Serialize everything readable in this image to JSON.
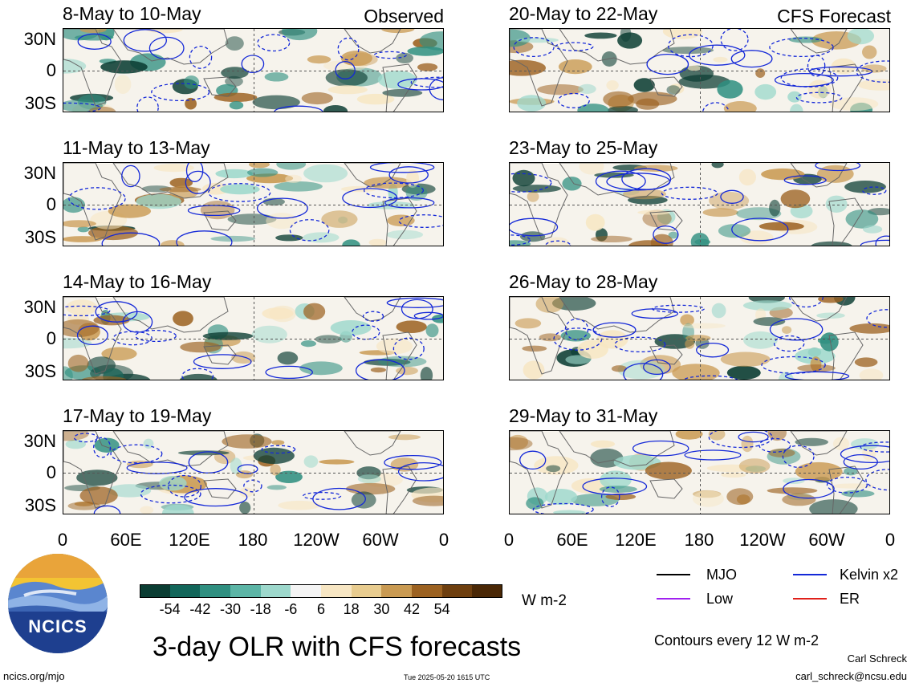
{
  "observed_label": "Observed",
  "forecast_label": "CFS Forecast",
  "panels": [
    {
      "title": "8-May to 10-May"
    },
    {
      "title": "11-May to 13-May"
    },
    {
      "title": "14-May to 16-May"
    },
    {
      "title": "17-May to 19-May"
    },
    {
      "title": "20-May to 22-May"
    },
    {
      "title": "23-May to 25-May"
    },
    {
      "title": "26-May to 28-May"
    },
    {
      "title": "29-May to 31-May"
    }
  ],
  "lat_labels": [
    "30N",
    "0",
    "30S"
  ],
  "lon_labels": [
    "0",
    "60E",
    "120E",
    "180",
    "120W",
    "60W",
    "0"
  ],
  "colorbar": {
    "labels": [
      "-54",
      "-42",
      "-30",
      "-18",
      "-6",
      "6",
      "18",
      "30",
      "42",
      "54"
    ],
    "colors": [
      "#0b3d33",
      "#12665a",
      "#2f8f80",
      "#5cb5a6",
      "#9dd8cc",
      "#f4f4f4",
      "#f7e6c3",
      "#e8cc8f",
      "#c99a52",
      "#9c6221",
      "#6e3f0f",
      "#4a2806"
    ],
    "units": "W m-2"
  },
  "legend": {
    "mjo": "MJO",
    "kelvin": "Kelvin x2",
    "low": "Low",
    "er": "ER",
    "contours": "Contours every 12 W m-2"
  },
  "colors": {
    "mjo": "#000000",
    "kelvin": "#1428d8",
    "low": "#a020f0",
    "er": "#e0201a"
  },
  "main_title": "3-day OLR with CFS forecasts",
  "logo_text": "NCICS",
  "url": "ncics.org/mjo",
  "timestamp": "Tue 2025-05-20 1615 UTC",
  "author": "Carl Schreck",
  "email": "carl_schreck@ncsu.edu"
}
